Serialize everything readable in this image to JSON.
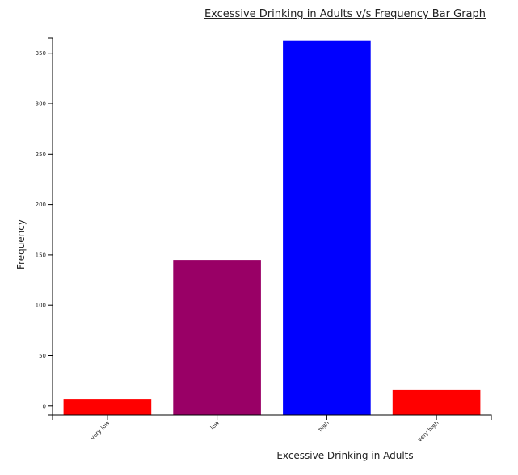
{
  "chart_data": {
    "type": "bar",
    "title": "Excessive Drinking in Adults v/s Frequency Bar Graph",
    "xlabel": "Excessive Drinking in Adults",
    "ylabel": "Frequency",
    "categories": [
      "very low",
      "low",
      "high",
      "very high"
    ],
    "values": [
      7,
      145,
      362,
      16
    ],
    "bar_colors": [
      "#ff0000",
      "#990066",
      "#0000ff",
      "#ff0000"
    ],
    "ylim": [
      -9,
      365
    ],
    "yticks": [
      0,
      50,
      100,
      150,
      200,
      250,
      300,
      350
    ],
    "grid": false
  }
}
